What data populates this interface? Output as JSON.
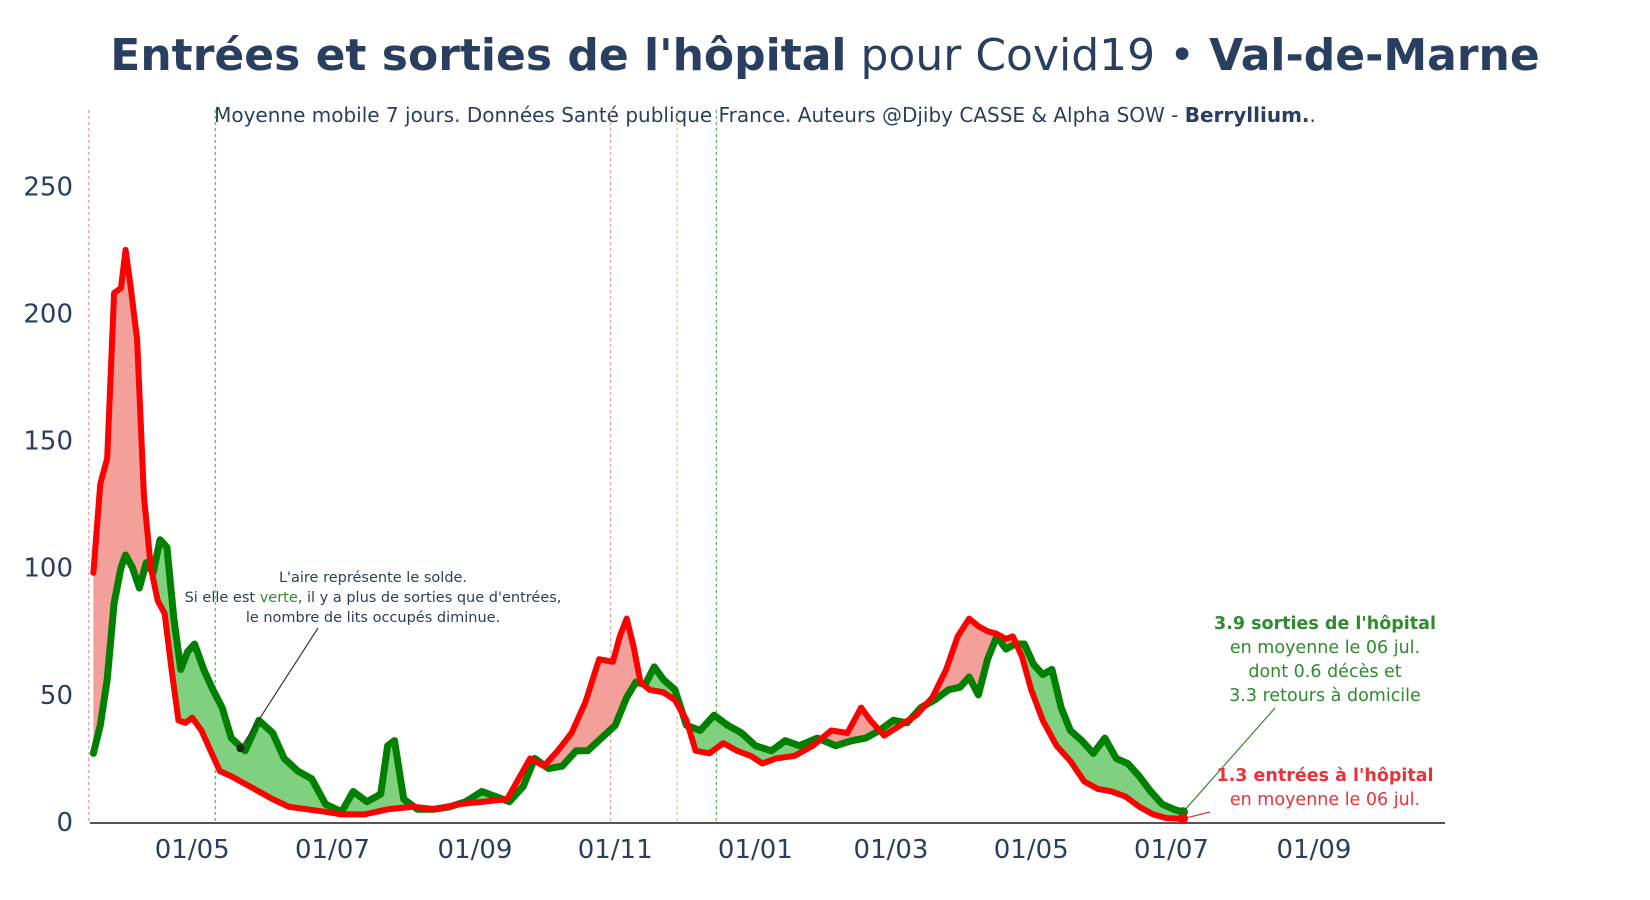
{
  "title": {
    "bold": "Entrées et sorties de l'hôpital",
    "normal": " pour Covid19 • ",
    "region": "Val-de-Marne"
  },
  "subtitle": {
    "text": "Moyenne mobile 7 jours. Données Santé publique France. Auteurs @Djiby CASSE & Alpha SOW - ",
    "brand": "Berryllium.",
    "end": "."
  },
  "annotation_note": {
    "line1": "L'aire représente le solde.",
    "line2_pre": "Si elle est ",
    "line2_green": "verte",
    "line2_post": ", il y a plus de sorties que d'entrées,",
    "line3": "le nombre de lits occupés diminue."
  },
  "annotation_out": {
    "bold": "3.9 sorties de l'hôpital",
    "line2": "en moyenne le 06 jul.",
    "line3": "dont 0.6 décès et",
    "line4": "3.3 retours à domicile"
  },
  "annotation_in": {
    "bold": "1.3 entrées à l'hôpital",
    "line2": "en moyenne le 06 jul."
  },
  "colors": {
    "title": "#2a3f5f",
    "entrees": "#ff0000",
    "sorties": "#008000",
    "fill_red": "#f4a09a",
    "fill_green": "#7fd07f",
    "vline_red": "#e8a0a0",
    "vline_green": "#5cb85c",
    "vline_orange": "#f5c08a"
  },
  "chart_data": {
    "type": "line",
    "title": "Entrées et sorties de l'hôpital pour Covid19 • Val-de-Marne",
    "xlabel": "",
    "ylabel": "",
    "ylim": [
      0,
      280
    ],
    "xlim": [
      "2020-03-11",
      "2021-10-28"
    ],
    "x_ticks": [
      {
        "date": "2020-05-01",
        "label": "01/05"
      },
      {
        "date": "2020-07-01",
        "label": "01/07"
      },
      {
        "date": "2020-09-01",
        "label": "01/09"
      },
      {
        "date": "2020-11-01",
        "label": "01/11"
      },
      {
        "date": "2021-01-01",
        "label": "01/01"
      },
      {
        "date": "2021-03-01",
        "label": "01/03"
      },
      {
        "date": "2021-05-01",
        "label": "01/05"
      },
      {
        "date": "2021-07-01",
        "label": "01/07"
      },
      {
        "date": "2021-09-01",
        "label": "01/09"
      }
    ],
    "y_ticks": [
      0,
      50,
      100,
      150,
      200,
      250
    ],
    "vlines": [
      {
        "date": "2020-03-17",
        "color": "red"
      },
      {
        "date": "2020-05-11",
        "color": "green"
      },
      {
        "date": "2020-10-30",
        "color": "red"
      },
      {
        "date": "2020-11-28",
        "color": "orange"
      },
      {
        "date": "2020-12-15",
        "color": "green"
      }
    ],
    "series": [
      {
        "key": "entrees",
        "points": [
          [
            "2020-03-19",
            98
          ],
          [
            "2020-03-22",
            133
          ],
          [
            "2020-03-25",
            143
          ],
          [
            "2020-03-28",
            208
          ],
          [
            "2020-03-31",
            210
          ],
          [
            "2020-04-02",
            225
          ],
          [
            "2020-04-04",
            212
          ],
          [
            "2020-04-07",
            190
          ],
          [
            "2020-04-10",
            128
          ],
          [
            "2020-04-13",
            100
          ],
          [
            "2020-04-16",
            87
          ],
          [
            "2020-04-19",
            82
          ],
          [
            "2020-04-22",
            60
          ],
          [
            "2020-04-25",
            40
          ],
          [
            "2020-04-28",
            39
          ],
          [
            "2020-05-01",
            41
          ],
          [
            "2020-05-05",
            36
          ],
          [
            "2020-05-09",
            28
          ],
          [
            "2020-05-13",
            20
          ],
          [
            "2020-05-18",
            18
          ],
          [
            "2020-05-24",
            15
          ],
          [
            "2020-05-30",
            12
          ],
          [
            "2020-06-05",
            9
          ],
          [
            "2020-06-12",
            6
          ],
          [
            "2020-06-20",
            5
          ],
          [
            "2020-06-28",
            4
          ],
          [
            "2020-07-05",
            3
          ],
          [
            "2020-07-15",
            3
          ],
          [
            "2020-07-25",
            5
          ],
          [
            "2020-08-05",
            6
          ],
          [
            "2020-08-15",
            5
          ],
          [
            "2020-08-25",
            7
          ],
          [
            "2020-09-05",
            8
          ],
          [
            "2020-09-15",
            9
          ],
          [
            "2020-09-20",
            17
          ],
          [
            "2020-09-25",
            25
          ],
          [
            "2020-10-01",
            22
          ],
          [
            "2020-10-07",
            28
          ],
          [
            "2020-10-13",
            35
          ],
          [
            "2020-10-19",
            47
          ],
          [
            "2020-10-25",
            64
          ],
          [
            "2020-10-31",
            63
          ],
          [
            "2020-11-03",
            73
          ],
          [
            "2020-11-06",
            80
          ],
          [
            "2020-11-09",
            69
          ],
          [
            "2020-11-12",
            55
          ],
          [
            "2020-11-16",
            52
          ],
          [
            "2020-11-22",
            51
          ],
          [
            "2020-11-27",
            48
          ],
          [
            "2020-12-02",
            40
          ],
          [
            "2020-12-06",
            28
          ],
          [
            "2020-12-12",
            27
          ],
          [
            "2020-12-18",
            31
          ],
          [
            "2020-12-24",
            28
          ],
          [
            "2020-12-30",
            26
          ],
          [
            "2021-01-04",
            23
          ],
          [
            "2021-01-10",
            25
          ],
          [
            "2021-01-18",
            26
          ],
          [
            "2021-01-26",
            30
          ],
          [
            "2021-02-03",
            36
          ],
          [
            "2021-02-10",
            35
          ],
          [
            "2021-02-16",
            45
          ],
          [
            "2021-02-20",
            40
          ],
          [
            "2021-02-26",
            34
          ],
          [
            "2021-03-05",
            38
          ],
          [
            "2021-03-12",
            42
          ],
          [
            "2021-03-19",
            49
          ],
          [
            "2021-03-25",
            60
          ],
          [
            "2021-03-30",
            73
          ],
          [
            "2021-04-04",
            80
          ],
          [
            "2021-04-08",
            77
          ],
          [
            "2021-04-12",
            75
          ],
          [
            "2021-04-16",
            74
          ],
          [
            "2021-04-20",
            72
          ],
          [
            "2021-04-23",
            73
          ],
          [
            "2021-04-27",
            65
          ],
          [
            "2021-05-01",
            52
          ],
          [
            "2021-05-06",
            40
          ],
          [
            "2021-05-12",
            30
          ],
          [
            "2021-05-18",
            24
          ],
          [
            "2021-05-24",
            16
          ],
          [
            "2021-05-30",
            13
          ],
          [
            "2021-06-05",
            12
          ],
          [
            "2021-06-11",
            10
          ],
          [
            "2021-06-17",
            6
          ],
          [
            "2021-06-23",
            3
          ],
          [
            "2021-06-29",
            1.5
          ],
          [
            "2021-07-06",
            1.3
          ]
        ]
      },
      {
        "key": "sorties",
        "points": [
          [
            "2020-03-19",
            27
          ],
          [
            "2020-03-22",
            38
          ],
          [
            "2020-03-25",
            56
          ],
          [
            "2020-03-28",
            86
          ],
          [
            "2020-03-31",
            100
          ],
          [
            "2020-04-02",
            105
          ],
          [
            "2020-04-05",
            100
          ],
          [
            "2020-04-08",
            92
          ],
          [
            "2020-04-11",
            102
          ],
          [
            "2020-04-14",
            98
          ],
          [
            "2020-04-17",
            111
          ],
          [
            "2020-04-20",
            108
          ],
          [
            "2020-04-23",
            80
          ],
          [
            "2020-04-26",
            60
          ],
          [
            "2020-04-29",
            67
          ],
          [
            "2020-05-02",
            70
          ],
          [
            "2020-05-06",
            60
          ],
          [
            "2020-05-10",
            52
          ],
          [
            "2020-05-14",
            45
          ],
          [
            "2020-05-18",
            33
          ],
          [
            "2020-05-24",
            28
          ],
          [
            "2020-05-30",
            40
          ],
          [
            "2020-06-05",
            35
          ],
          [
            "2020-06-10",
            25
          ],
          [
            "2020-06-16",
            20
          ],
          [
            "2020-06-22",
            17
          ],
          [
            "2020-06-28",
            7
          ],
          [
            "2020-07-05",
            4
          ],
          [
            "2020-07-10",
            12
          ],
          [
            "2020-07-16",
            8
          ],
          [
            "2020-07-22",
            11
          ],
          [
            "2020-07-25",
            30
          ],
          [
            "2020-07-28",
            32
          ],
          [
            "2020-08-01",
            9
          ],
          [
            "2020-08-07",
            5
          ],
          [
            "2020-08-14",
            5
          ],
          [
            "2020-08-21",
            6
          ],
          [
            "2020-08-28",
            8
          ],
          [
            "2020-09-04",
            12
          ],
          [
            "2020-09-10",
            10
          ],
          [
            "2020-09-16",
            8
          ],
          [
            "2020-09-22",
            14
          ],
          [
            "2020-09-27",
            25
          ],
          [
            "2020-10-03",
            21
          ],
          [
            "2020-10-09",
            22
          ],
          [
            "2020-10-15",
            28
          ],
          [
            "2020-10-20",
            28
          ],
          [
            "2020-10-26",
            33
          ],
          [
            "2020-11-01",
            38
          ],
          [
            "2020-11-06",
            49
          ],
          [
            "2020-11-10",
            55
          ],
          [
            "2020-11-14",
            54
          ],
          [
            "2020-11-18",
            61
          ],
          [
            "2020-11-22",
            56
          ],
          [
            "2020-11-27",
            52
          ],
          [
            "2020-12-02",
            38
          ],
          [
            "2020-12-08",
            36
          ],
          [
            "2020-12-14",
            42
          ],
          [
            "2020-12-20",
            38
          ],
          [
            "2020-12-26",
            35
          ],
          [
            "2021-01-01",
            30
          ],
          [
            "2021-01-08",
            28
          ],
          [
            "2021-01-14",
            32
          ],
          [
            "2021-01-20",
            30
          ],
          [
            "2021-01-28",
            33
          ],
          [
            "2021-02-05",
            30
          ],
          [
            "2021-02-12",
            32
          ],
          [
            "2021-02-18",
            33
          ],
          [
            "2021-02-24",
            36
          ],
          [
            "2021-03-02",
            40
          ],
          [
            "2021-03-08",
            39
          ],
          [
            "2021-03-14",
            45
          ],
          [
            "2021-03-20",
            48
          ],
          [
            "2021-03-26",
            52
          ],
          [
            "2021-03-31",
            53
          ],
          [
            "2021-04-04",
            57
          ],
          [
            "2021-04-08",
            50
          ],
          [
            "2021-04-12",
            64
          ],
          [
            "2021-04-16",
            73
          ],
          [
            "2021-04-20",
            68
          ],
          [
            "2021-04-24",
            70
          ],
          [
            "2021-04-28",
            70
          ],
          [
            "2021-05-02",
            62
          ],
          [
            "2021-05-06",
            58
          ],
          [
            "2021-05-10",
            60
          ],
          [
            "2021-05-14",
            45
          ],
          [
            "2021-05-18",
            36
          ],
          [
            "2021-05-23",
            32
          ],
          [
            "2021-05-28",
            27
          ],
          [
            "2021-06-02",
            33
          ],
          [
            "2021-06-07",
            25
          ],
          [
            "2021-06-12",
            23
          ],
          [
            "2021-06-17",
            18
          ],
          [
            "2021-06-22",
            12
          ],
          [
            "2021-06-27",
            7
          ],
          [
            "2021-07-02",
            5
          ],
          [
            "2021-07-06",
            3.9
          ]
        ]
      }
    ]
  }
}
